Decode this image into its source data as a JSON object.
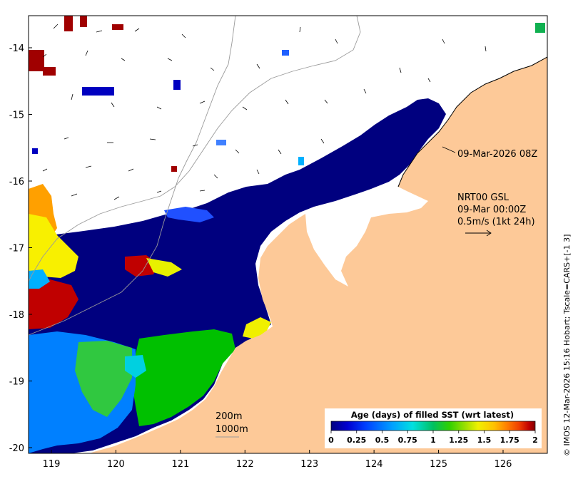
{
  "map": {
    "x_ticks": [
      "119",
      "120",
      "121",
      "122",
      "123",
      "124",
      "125",
      "126"
    ],
    "y_ticks": [
      "-14",
      "-15",
      "-16",
      "-17",
      "-18",
      "-19",
      "-20"
    ],
    "timestamp_label": "09-Mar-2026 08Z",
    "current_legend": {
      "line1": "NRT00 GSL",
      "line2": "09-Mar 00:00Z",
      "line3": "0.5m/s (1kt 24h)"
    },
    "isobath_legend": {
      "line1": "200m",
      "line2": "1000m"
    },
    "colorbar": {
      "title": "Age (days) of filled SST (wrt latest)",
      "ticks": [
        "0",
        "0.25",
        "0.5",
        "0.75",
        "1",
        "1.25",
        "1.5",
        "1.75",
        "2"
      ],
      "colors": [
        "#00007f",
        "#0000d0",
        "#0040ff",
        "#00a0ff",
        "#00e0e0",
        "#00c060",
        "#30d000",
        "#a0e000",
        "#f0f000",
        "#ffc000",
        "#ff8000",
        "#f04000",
        "#c00000",
        "#800000"
      ]
    },
    "credit": "© IMOS 12-Mar-2026 15:16 Hobart; Tscale=CARS+[-1 3]",
    "colors": {
      "land": "#fdc998",
      "age_recent": "#00007f",
      "age_old": "#8b0000",
      "no_data": "#ffffff"
    }
  }
}
